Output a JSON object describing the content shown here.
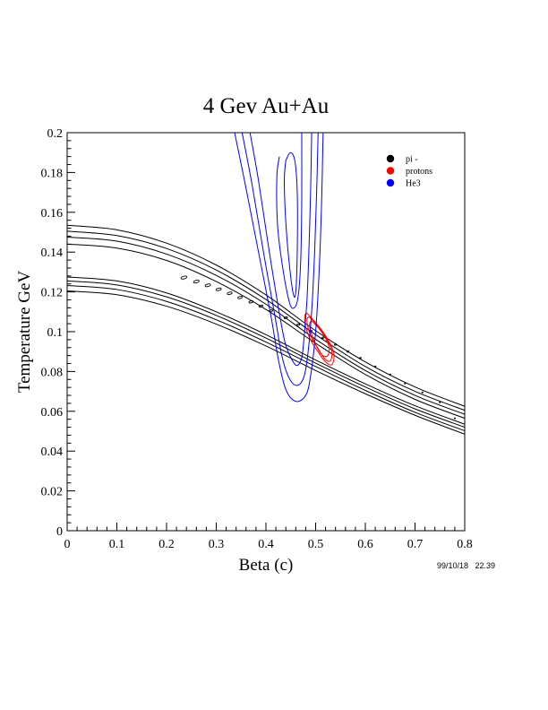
{
  "chart_data": {
    "type": "line",
    "title": "4 Gev Au+Au",
    "xlabel": "Beta (c)",
    "ylabel": "Temperature GeV",
    "xlim": [
      0,
      0.8
    ],
    "ylim": [
      0,
      0.2
    ],
    "x_ticks": [
      "0",
      "0.1",
      "0.2",
      "0.3",
      "0.4",
      "0.5",
      "0.6",
      "0.7",
      "0.8"
    ],
    "y_ticks": [
      "0",
      "0.02",
      "0.04",
      "0.06",
      "0.08",
      "0.1",
      "0.12",
      "0.14",
      "0.16",
      "0.18",
      "0.2"
    ],
    "timestamp": "99/10/18   22.39",
    "legend_position": "top-right",
    "colors": {
      "pi": "#000000",
      "protons": "#ff0000",
      "He3": "#0000ff"
    },
    "legend": [
      {
        "name": "pi -",
        "color": "#000000"
      },
      {
        "name": "protons",
        "color": "#ff0000"
      },
      {
        "name": "He3",
        "color": "#0000ff"
      }
    ],
    "series": [
      {
        "name": "pi -",
        "color": "#000000",
        "contours": [
          [
            [
              0,
              0.1535
            ],
            [
              0.1,
              0.1512
            ],
            [
              0.2,
              0.1445
            ],
            [
              0.3,
              0.1335
            ],
            [
              0.4,
              0.1185
            ],
            [
              0.5,
              0.1005
            ],
            [
              0.6,
              0.0848
            ],
            [
              0.7,
              0.0722
            ],
            [
              0.8,
              0.0625
            ]
          ],
          [
            [
              0,
              0.1505
            ],
            [
              0.1,
              0.1483
            ],
            [
              0.2,
              0.1418
            ],
            [
              0.3,
              0.131
            ],
            [
              0.4,
              0.1162
            ],
            [
              0.5,
              0.0985
            ],
            [
              0.6,
              0.0825
            ],
            [
              0.7,
              0.07
            ],
            [
              0.8,
              0.0605
            ]
          ],
          [
            [
              0,
              0.1475
            ],
            [
              0.1,
              0.1455
            ],
            [
              0.2,
              0.139
            ],
            [
              0.3,
              0.1283
            ],
            [
              0.4,
              0.1138
            ],
            [
              0.5,
              0.0962
            ],
            [
              0.6,
              0.0805
            ],
            [
              0.7,
              0.068
            ],
            [
              0.8,
              0.0585
            ]
          ],
          [
            [
              0,
              0.144
            ],
            [
              0.1,
              0.142
            ],
            [
              0.2,
              0.1358
            ],
            [
              0.3,
              0.1252
            ],
            [
              0.4,
              0.1112
            ],
            [
              0.5,
              0.0942
            ],
            [
              0.6,
              0.0785
            ],
            [
              0.7,
              0.066
            ],
            [
              0.8,
              0.0565
            ]
          ],
          [
            [
              0,
              0.1275
            ],
            [
              0.1,
              0.1255
            ],
            [
              0.2,
              0.1195
            ],
            [
              0.3,
              0.11
            ],
            [
              0.4,
              0.0985
            ],
            [
              0.5,
              0.0858
            ],
            [
              0.6,
              0.0738
            ],
            [
              0.7,
              0.0628
            ],
            [
              0.8,
              0.0535
            ]
          ],
          [
            [
              0,
              0.1255
            ],
            [
              0.1,
              0.1235
            ],
            [
              0.2,
              0.1175
            ],
            [
              0.3,
              0.1082
            ],
            [
              0.4,
              0.0968
            ],
            [
              0.5,
              0.0842
            ],
            [
              0.6,
              0.0722
            ],
            [
              0.7,
              0.0612
            ],
            [
              0.8,
              0.052
            ]
          ],
          [
            [
              0,
              0.1232
            ],
            [
              0.1,
              0.1212
            ],
            [
              0.2,
              0.1152
            ],
            [
              0.3,
              0.106
            ],
            [
              0.4,
              0.0948
            ],
            [
              0.5,
              0.0825
            ],
            [
              0.6,
              0.0705
            ],
            [
              0.7,
              0.0595
            ],
            [
              0.8,
              0.0502
            ]
          ],
          [
            [
              0,
              0.1205
            ],
            [
              0.1,
              0.1186
            ],
            [
              0.2,
              0.1128
            ],
            [
              0.3,
              0.1038
            ],
            [
              0.4,
              0.0928
            ],
            [
              0.5,
              0.0805
            ],
            [
              0.6,
              0.0688
            ],
            [
              0.7,
              0.058
            ],
            [
              0.8,
              0.0485
            ]
          ]
        ],
        "markers": [
          [
            0.235,
            0.1272
          ],
          [
            0.26,
            0.1252
          ],
          [
            0.283,
            0.1233
          ],
          [
            0.305,
            0.1213
          ],
          [
            0.327,
            0.1193
          ],
          [
            0.348,
            0.1172
          ],
          [
            0.37,
            0.115
          ],
          [
            0.39,
            0.1128
          ],
          [
            0.41,
            0.1105
          ],
          [
            0.44,
            0.107
          ],
          [
            0.465,
            0.1035
          ],
          [
            0.49,
            0.1003
          ],
          [
            0.515,
            0.097
          ],
          [
            0.54,
            0.0935
          ],
          [
            0.565,
            0.09
          ],
          [
            0.59,
            0.0868
          ],
          [
            0.62,
            0.0825
          ],
          [
            0.65,
            0.0785
          ],
          [
            0.68,
            0.074
          ],
          [
            0.715,
            0.0695
          ],
          [
            0.75,
            0.0645
          ],
          [
            0.78,
            0.0565
          ]
        ]
      },
      {
        "name": "protons",
        "color": "#ff0000",
        "contours": [
          [
            [
              0.482,
              0.1095
            ],
            [
              0.5,
              0.1045
            ],
            [
              0.516,
              0.0995
            ],
            [
              0.53,
              0.0935
            ],
            [
              0.537,
              0.0885
            ],
            [
              0.533,
              0.0835
            ],
            [
              0.52,
              0.0848
            ],
            [
              0.505,
              0.0898
            ],
            [
              0.49,
              0.0958
            ],
            [
              0.48,
              0.1025
            ],
            [
              0.478,
              0.1078
            ],
            [
              0.482,
              0.1095
            ]
          ],
          [
            [
              0.487,
              0.1075
            ],
            [
              0.503,
              0.1032
            ],
            [
              0.517,
              0.0985
            ],
            [
              0.529,
              0.093
            ],
            [
              0.533,
              0.0888
            ],
            [
              0.529,
              0.0852
            ],
            [
              0.518,
              0.0865
            ],
            [
              0.505,
              0.0915
            ],
            [
              0.492,
              0.0968
            ],
            [
              0.484,
              0.1028
            ],
            [
              0.483,
              0.1065
            ],
            [
              0.487,
              0.1075
            ]
          ],
          [
            [
              0.493,
              0.1052
            ],
            [
              0.507,
              0.1015
            ],
            [
              0.518,
              0.0975
            ],
            [
              0.526,
              0.0932
            ],
            [
              0.527,
              0.0898
            ],
            [
              0.522,
              0.0875
            ],
            [
              0.512,
              0.0885
            ],
            [
              0.502,
              0.0925
            ],
            [
              0.493,
              0.0978
            ],
            [
              0.488,
              0.1025
            ],
            [
              0.489,
              0.1048
            ],
            [
              0.493,
              0.1052
            ]
          ]
        ]
      },
      {
        "name": "He3",
        "color": "#0000ff",
        "contours": [
          [
            [
              0.337,
              0.2
            ],
            [
              0.36,
              0.172
            ],
            [
              0.385,
              0.14
            ],
            [
              0.41,
              0.108
            ],
            [
              0.425,
              0.086
            ],
            [
              0.44,
              0.071
            ],
            [
              0.46,
              0.065
            ],
            [
              0.48,
              0.068
            ],
            [
              0.49,
              0.078
            ],
            [
              0.5,
              0.1
            ],
            [
              0.507,
              0.13
            ],
            [
              0.512,
              0.165
            ],
            [
              0.515,
              0.2
            ]
          ],
          [
            [
              0.352,
              0.2
            ],
            [
              0.372,
              0.174
            ],
            [
              0.395,
              0.14
            ],
            [
              0.418,
              0.108
            ],
            [
              0.432,
              0.088
            ],
            [
              0.446,
              0.077
            ],
            [
              0.462,
              0.073
            ],
            [
              0.476,
              0.077
            ],
            [
              0.484,
              0.088
            ],
            [
              0.492,
              0.11
            ],
            [
              0.498,
              0.14
            ],
            [
              0.502,
              0.17
            ],
            [
              0.505,
              0.2
            ]
          ],
          [
            [
              0.368,
              0.2
            ],
            [
              0.385,
              0.176
            ],
            [
              0.405,
              0.143
            ],
            [
              0.425,
              0.112
            ],
            [
              0.438,
              0.095
            ],
            [
              0.45,
              0.087
            ],
            [
              0.462,
              0.083
            ],
            [
              0.472,
              0.087
            ],
            [
              0.477,
              0.098
            ],
            [
              0.483,
              0.118
            ],
            [
              0.487,
              0.145
            ],
            [
              0.49,
              0.172
            ],
            [
              0.492,
              0.2
            ]
          ],
          [
            [
              0.427,
              0.188
            ],
            [
              0.422,
              0.178
            ],
            [
              0.423,
              0.155
            ],
            [
              0.432,
              0.135
            ],
            [
              0.447,
              0.115
            ],
            [
              0.457,
              0.112
            ],
            [
              0.465,
              0.118
            ],
            [
              0.47,
              0.136
            ],
            [
              0.472,
              0.165
            ],
            [
              0.472,
              0.2
            ]
          ],
          [
            [
              0.44,
              0.186
            ],
            [
              0.437,
              0.176
            ],
            [
              0.44,
              0.155
            ],
            [
              0.447,
              0.134
            ],
            [
              0.455,
              0.119
            ],
            [
              0.46,
              0.12
            ],
            [
              0.463,
              0.14
            ],
            [
              0.463,
              0.17
            ],
            [
              0.458,
              0.186
            ],
            [
              0.449,
              0.19
            ],
            [
              0.44,
              0.186
            ]
          ]
        ]
      }
    ]
  }
}
